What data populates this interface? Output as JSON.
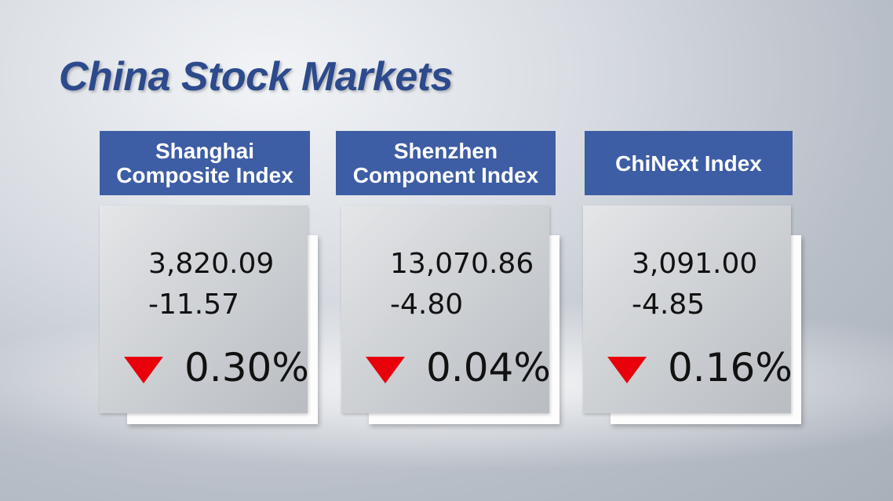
{
  "title": "China Stock Markets",
  "cards": [
    {
      "name_lines": [
        "Shanghai",
        "Composite Index"
      ],
      "level": "3,820.09",
      "change": "-11.57",
      "percent": "0.30%"
    },
    {
      "name_lines": [
        "Shenzhen",
        "Component Index"
      ],
      "level": "13,070.86",
      "change": "-4.80",
      "percent": "0.04%"
    },
    {
      "name_lines": [
        "ChiNext Index"
      ],
      "level": "3,091.00",
      "change": "-4.85",
      "percent": "0.16%"
    }
  ]
}
